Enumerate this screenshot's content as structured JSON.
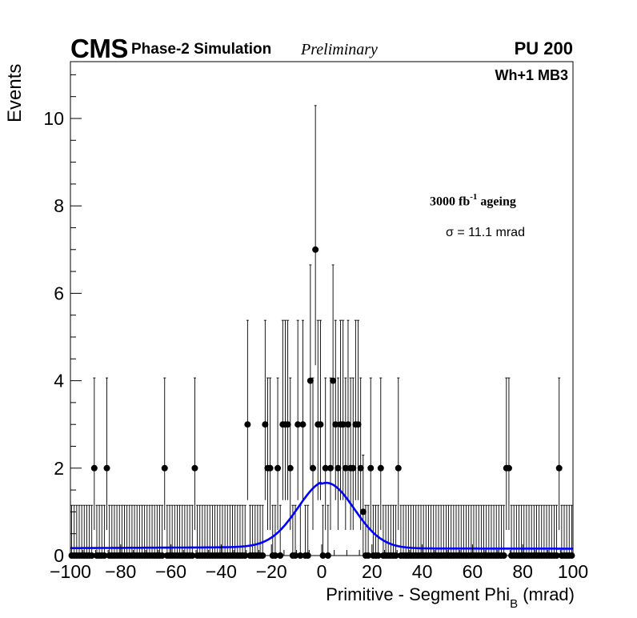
{
  "header": {
    "experiment": "CMS",
    "subtitle": "Phase-2 Simulation",
    "status": "Preliminary",
    "pileup": "PU 200"
  },
  "annotations": {
    "region": "Wh+1 MB3",
    "ageing_prefix": "3000 fb",
    "ageing_exponent": "-1",
    "ageing_suffix": " ageing",
    "sigma_text": "σ = 11.1 mrad"
  },
  "chart_data": {
    "type": "scatter",
    "title": "",
    "xlabel_main": "Primitive - Segment Phi",
    "xlabel_sub": "B",
    "xlabel_unit": " (mrad)",
    "ylabel": "Events",
    "xlim": [
      -100,
      100
    ],
    "ylim": [
      0,
      11.3
    ],
    "x_ticks": [
      -100,
      -80,
      -60,
      -40,
      -20,
      0,
      20,
      40,
      60,
      80,
      100
    ],
    "x_tick_labels": [
      "−100",
      "−80",
      "−60",
      "−40",
      "−20",
      "0",
      "20",
      "40",
      "60",
      "80",
      "100"
    ],
    "y_ticks": [
      0,
      2,
      4,
      6,
      8,
      10
    ],
    "y_tick_labels": [
      "0",
      "2",
      "4",
      "6",
      "8",
      "10"
    ],
    "grid": false,
    "bin_width": 1,
    "background_level": 1,
    "error_bar_type": "Poisson",
    "series": [
      {
        "kind": "histogram-points",
        "color": "#000000",
        "points": [
          [
            -91,
            2
          ],
          [
            -86,
            2
          ],
          [
            -63,
            2
          ],
          [
            -51,
            2
          ],
          [
            -30,
            3
          ],
          [
            -23,
            3
          ],
          [
            -22,
            2
          ],
          [
            -21,
            2
          ],
          [
            -18,
            2
          ],
          [
            -16,
            3
          ],
          [
            -15,
            3
          ],
          [
            -14,
            3
          ],
          [
            -13,
            2
          ],
          [
            -10,
            3
          ],
          [
            -8,
            3
          ],
          [
            -5,
            4
          ],
          [
            -4,
            2
          ],
          [
            -3,
            7
          ],
          [
            -2,
            3
          ],
          [
            -1,
            3
          ],
          [
            1,
            2
          ],
          [
            3,
            2
          ],
          [
            4,
            4
          ],
          [
            5,
            3
          ],
          [
            6,
            2
          ],
          [
            7,
            3
          ],
          [
            8,
            3
          ],
          [
            9,
            2
          ],
          [
            10,
            3
          ],
          [
            11,
            2
          ],
          [
            12,
            2
          ],
          [
            13,
            3
          ],
          [
            14,
            3
          ],
          [
            15,
            2
          ],
          [
            16,
            1
          ],
          [
            19,
            2
          ],
          [
            23,
            2
          ],
          [
            30,
            2
          ],
          [
            73,
            2
          ],
          [
            74,
            2
          ],
          [
            94,
            2
          ]
        ]
      },
      {
        "kind": "fit",
        "color": "#0000ff",
        "model": "gaussian+constant",
        "mean": 1.8,
        "sigma": 11.1,
        "amplitude": 1.5,
        "constant": 0.17
      }
    ]
  }
}
